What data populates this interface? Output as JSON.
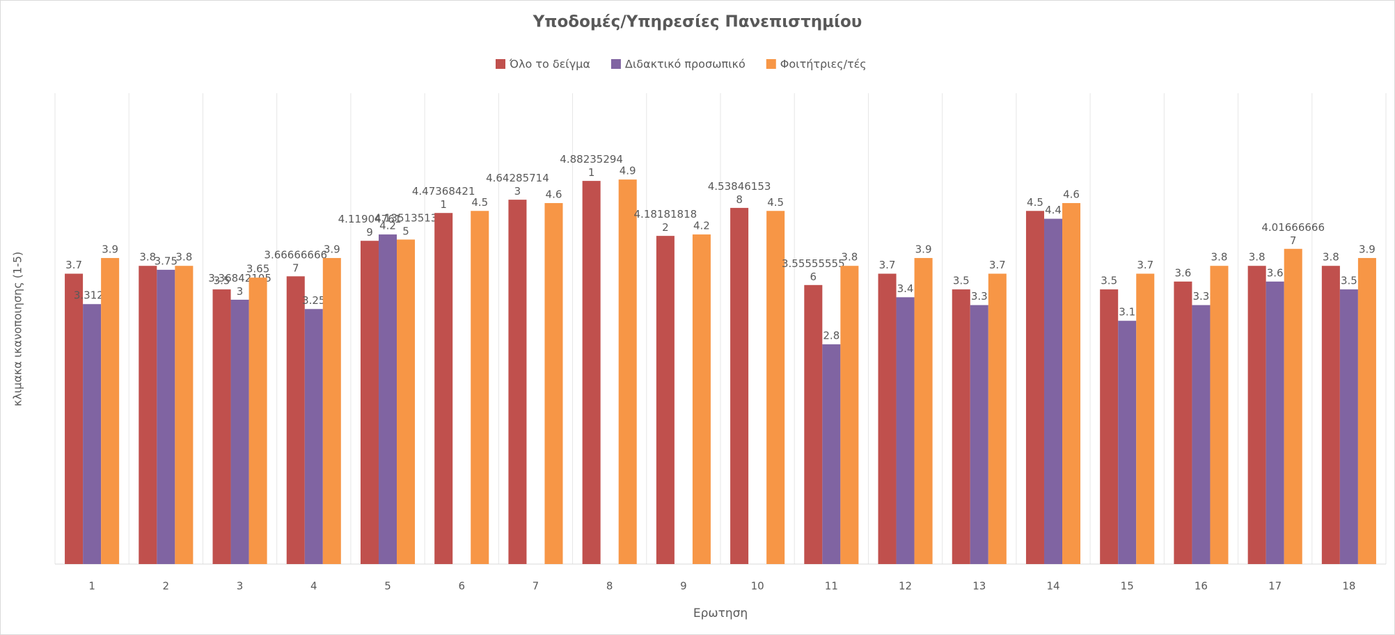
{
  "chart_data": {
    "type": "bar",
    "title": "Υποδομές/Υπηρεσίες Πανεπιστημίου",
    "x_label": "Ερωτηση",
    "y_label": "κλιμακα ικανοποιησης (1-5)",
    "categories": [
      "1",
      "2",
      "3",
      "4",
      "5",
      "6",
      "7",
      "8",
      "9",
      "10",
      "11",
      "12",
      "13",
      "14",
      "15",
      "16",
      "17",
      "18"
    ],
    "series": [
      {
        "name": "Όλο το δείγμα",
        "color": "#c0504d",
        "values": [
          3.7,
          3.8,
          3.5,
          3.666666667,
          4.119047619,
          4.473684211,
          4.642857143,
          4.882352941,
          4.181818182,
          4.538461538,
          3.555555556,
          3.7,
          3.5,
          4.5,
          3.5,
          3.6,
          3.8,
          3.8
        ]
      },
      {
        "name": "Διδακτικό προσωπικό",
        "color": "#8064a2",
        "values": [
          3.3125,
          3.75,
          3.368421053,
          3.25,
          4.2,
          null,
          null,
          null,
          null,
          null,
          2.8,
          3.4,
          3.3,
          4.4,
          3.1,
          3.3,
          3.6,
          3.5
        ]
      },
      {
        "name": "Φοιτήτριες/τές",
        "color": "#f79646",
        "values": [
          3.9,
          3.8,
          3.65,
          3.9,
          4.135135135,
          4.5,
          4.6,
          4.9,
          4.2,
          4.5,
          3.8,
          3.9,
          3.7,
          4.6,
          3.7,
          3.8,
          4.016666667,
          3.9
        ]
      }
    ],
    "ylim": [
      0,
      6
    ],
    "legend": "top"
  }
}
